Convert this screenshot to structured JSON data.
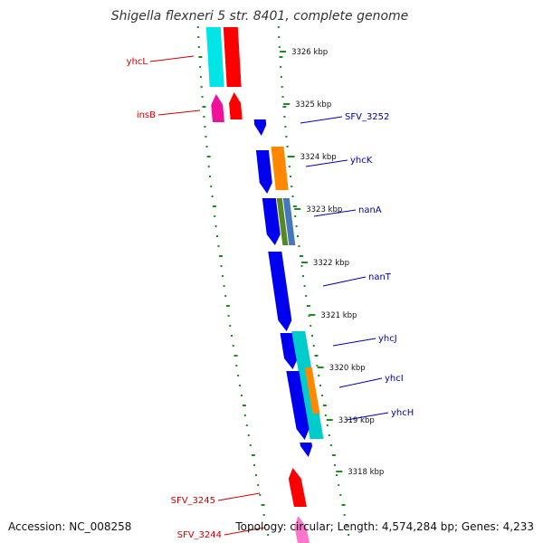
{
  "title": "Shigella flexneri 5 str. 8401, complete genome",
  "footer": {
    "accession": "Accession: NC_008258",
    "topology": "Topology: circular; Length: 4,574,284 bp; Genes: 4,233"
  },
  "colors": {
    "backbone": "#8a8a8a",
    "ruler_ticks": "#1f8a1f",
    "reverse_label": "#cc0000",
    "forward_label": "#0000aa"
  },
  "ruler_ticks": [
    {
      "label": "3326 kbp"
    },
    {
      "label": "3325 kbp"
    },
    {
      "label": "3324 kbp"
    },
    {
      "label": "3323 kbp"
    },
    {
      "label": "3322 kbp"
    },
    {
      "label": "3321 kbp"
    },
    {
      "label": "3320 kbp"
    },
    {
      "label": "3319 kbp"
    },
    {
      "label": "3318 kbp"
    }
  ],
  "gene_labels": [
    {
      "name": "yhcL",
      "strand": "reverse"
    },
    {
      "name": "insB",
      "strand": "reverse"
    },
    {
      "name": "SFV_3245",
      "strand": "reverse"
    },
    {
      "name": "SFV_3244",
      "strand": "reverse"
    },
    {
      "name": "SFV_3252",
      "strand": "forward"
    },
    {
      "name": "yhcK",
      "strand": "forward"
    },
    {
      "name": "nanA",
      "strand": "forward"
    },
    {
      "name": "nanT",
      "strand": "forward"
    },
    {
      "name": "yhcJ",
      "strand": "forward"
    },
    {
      "name": "yhcI",
      "strand": "forward"
    },
    {
      "name": "yhcH",
      "strand": "forward"
    }
  ],
  "features": [
    {
      "strand": "reverse",
      "color": "#00e5e5"
    },
    {
      "strand": "reverse",
      "color": "#ff0000"
    },
    {
      "strand": "reverse",
      "color": "#ee1199"
    },
    {
      "strand": "reverse",
      "color": "#ff0000"
    },
    {
      "strand": "reverse",
      "color": "#ff0000"
    },
    {
      "strand": "reverse",
      "color": "#ff77cc"
    },
    {
      "strand": "forward",
      "color": "#0000ee"
    },
    {
      "strand": "forward",
      "color": "#0000ee"
    },
    {
      "strand": "forward",
      "color": "#ff8800"
    },
    {
      "strand": "forward",
      "color": "#0000ee"
    },
    {
      "strand": "forward",
      "color": "#558822"
    },
    {
      "strand": "forward",
      "color": "#4477bb"
    },
    {
      "strand": "forward",
      "color": "#0000ee"
    },
    {
      "strand": "forward",
      "color": "#0000ee"
    },
    {
      "strand": "forward",
      "color": "#00cccc"
    },
    {
      "strand": "forward",
      "color": "#0000ee"
    },
    {
      "strand": "forward",
      "color": "#ff8800"
    },
    {
      "strand": "forward",
      "color": "#0000ee"
    }
  ]
}
